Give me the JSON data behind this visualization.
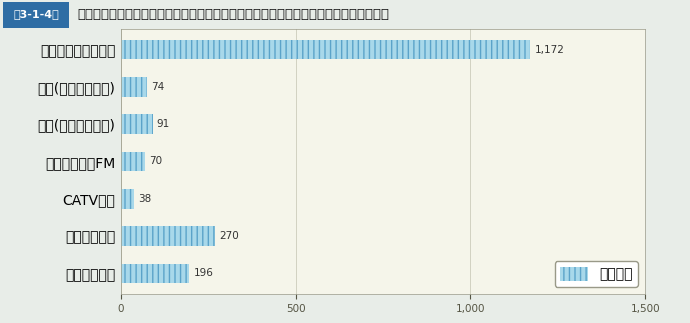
{
  "title": "Ｊアラートの全国一斉情報伝達訓練において自動起動訓練を行った情報伝達手段の状況",
  "title_tag": "第3-1-4図",
  "categories": [
    "同報系防災行政無線",
    "無線(屋外スピーカ)",
    "有線(屋外スピーカ)",
    "コミュニティFM",
    "CATV放送",
    "音声告知端末",
    "登録制メール"
  ],
  "values": [
    1172,
    74,
    91,
    70,
    38,
    270,
    196
  ],
  "bar_color": "#a8d8ea",
  "bar_hatch_color": "#5ba3c9",
  "xlim": [
    0,
    1500
  ],
  "xticks": [
    0,
    500,
    1000,
    1500
  ],
  "legend_label": "市町村数",
  "bg_color": "#e8ede8",
  "plot_bg_color": "#f5f5ea",
  "header_bg_color": "#2e6da4",
  "header_text_color": "#ffffff",
  "title_color": "#111111",
  "grid_color": "#ccccbb",
  "axis_color": "#999988",
  "label_fontsize": 7.5,
  "value_fontsize": 7.5,
  "title_fontsize": 9.5,
  "tag_fontsize": 8
}
